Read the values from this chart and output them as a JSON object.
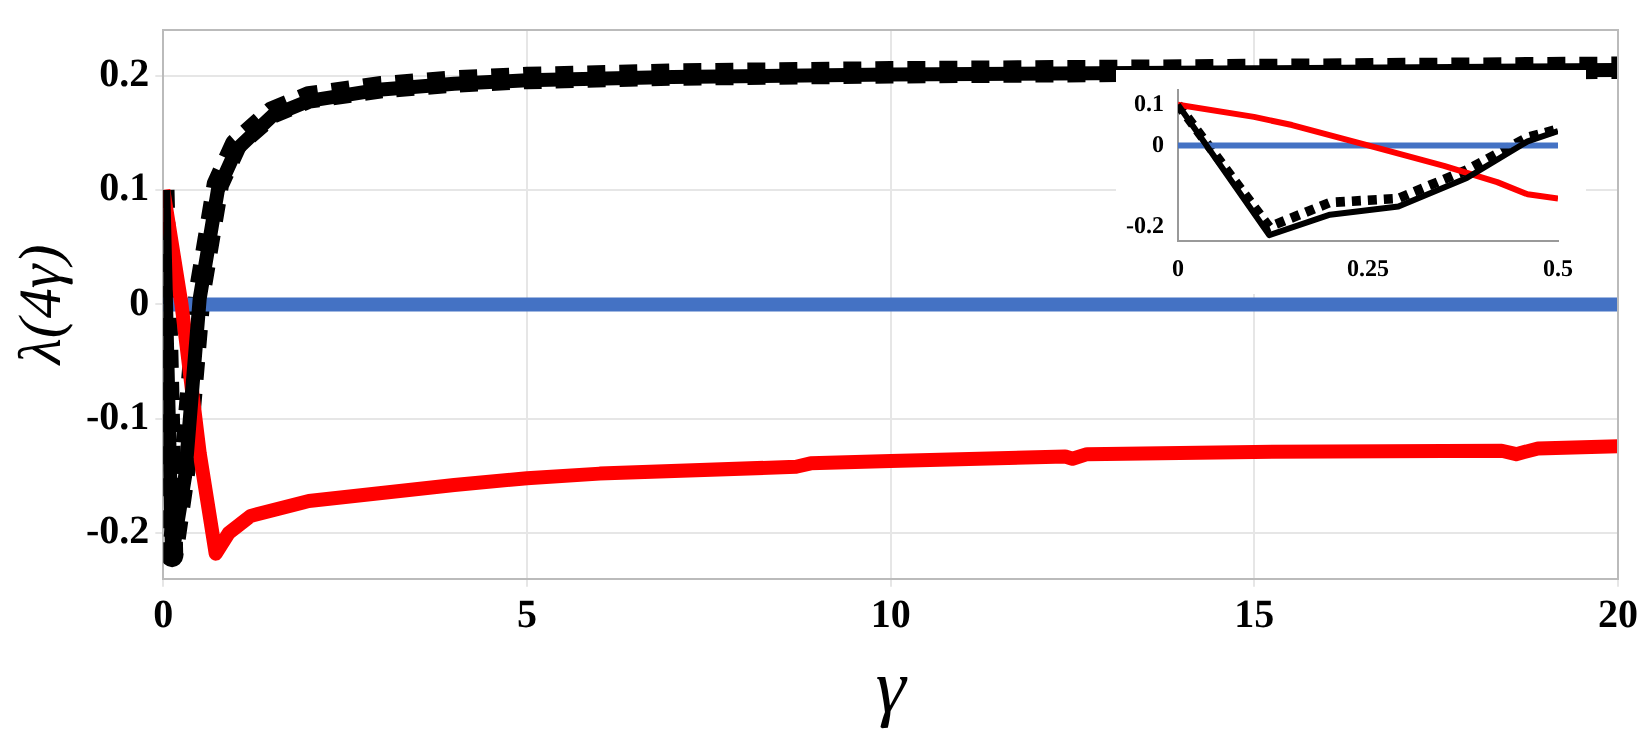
{
  "chart_data": [
    {
      "type": "line",
      "xlabel": "γ",
      "ylabel": "λ(4γ)",
      "xlim": [
        0,
        20
      ],
      "ylim": [
        -0.24,
        0.24
      ],
      "xticks": [
        0,
        5,
        10,
        15,
        20
      ],
      "yticks": [
        -0.2,
        -0.1,
        0,
        0.1,
        0.2
      ],
      "grid": true,
      "series": [
        {
          "color": "#000000",
          "line_style": "solid",
          "x": [
            0,
            0.12,
            0.3,
            0.5,
            0.75,
            1,
            1.5,
            2,
            3,
            4,
            5,
            7,
            10,
            15,
            20
          ],
          "values": [
            0.1,
            -0.22,
            -0.15,
            0.005,
            0.1,
            0.135,
            0.165,
            0.178,
            0.188,
            0.193,
            0.196,
            0.199,
            0.201,
            0.203,
            0.205
          ]
        },
        {
          "color": "#000000",
          "line_style": "dashed",
          "x": [
            0,
            0.12,
            0.3,
            0.5,
            0.75,
            1,
            1.5,
            2,
            3,
            4,
            5,
            7,
            10,
            15,
            20
          ],
          "values": [
            0.1,
            -0.22,
            -0.14,
            0.01,
            0.105,
            0.14,
            0.168,
            0.181,
            0.19,
            0.195,
            0.198,
            0.201,
            0.203,
            0.205,
            0.207
          ]
        },
        {
          "color": "#ff0000",
          "line_style": "solid",
          "x": [
            0,
            0.25,
            0.5,
            0.72,
            0.9,
            1.2,
            2,
            3,
            4,
            5,
            6,
            8.7,
            8.9,
            10,
            12.4,
            12.5,
            12.7,
            15,
            18.4,
            18.6,
            18.9,
            20
          ],
          "values": [
            0.1,
            0,
            -0.13,
            -0.218,
            -0.2,
            -0.185,
            -0.172,
            -0.165,
            -0.158,
            -0.152,
            -0.148,
            -0.142,
            -0.139,
            -0.137,
            -0.133,
            -0.135,
            -0.131,
            -0.129,
            -0.128,
            -0.131,
            -0.126,
            -0.124
          ]
        },
        {
          "color": "#4472c4",
          "line_style": "solid",
          "x": [
            0,
            20
          ],
          "values": [
            0,
            0
          ]
        }
      ]
    },
    {
      "type": "line",
      "xlim": [
        0,
        0.5
      ],
      "ylim": [
        -0.235,
        0.135
      ],
      "xticks": [
        0,
        0.25,
        0.5
      ],
      "yticks": [
        -0.2,
        0,
        0.1
      ],
      "series": [
        {
          "color": "#000000",
          "line_style": "solid",
          "x": [
            0,
            0.12,
            0.2,
            0.29,
            0.38,
            0.46,
            0.5
          ],
          "values": [
            0.1,
            -0.22,
            -0.17,
            -0.15,
            -0.08,
            0.01,
            0.035
          ]
        },
        {
          "color": "#000000",
          "line_style": "dashed",
          "x": [
            0,
            0.12,
            0.2,
            0.29,
            0.38,
            0.46,
            0.5
          ],
          "values": [
            0.1,
            -0.2,
            -0.14,
            -0.13,
            -0.06,
            0.02,
            0.04
          ]
        },
        {
          "color": "#ff0000",
          "line_style": "solid",
          "x": [
            0,
            0.1,
            0.15,
            0.25,
            0.35,
            0.42,
            0.46,
            0.5
          ],
          "values": [
            0.1,
            0.07,
            0.05,
            0,
            -0.05,
            -0.09,
            -0.12,
            -0.13
          ]
        },
        {
          "color": "#4472c4",
          "line_style": "solid",
          "x": [
            0,
            0.5
          ],
          "values": [
            0,
            0
          ]
        }
      ]
    }
  ]
}
